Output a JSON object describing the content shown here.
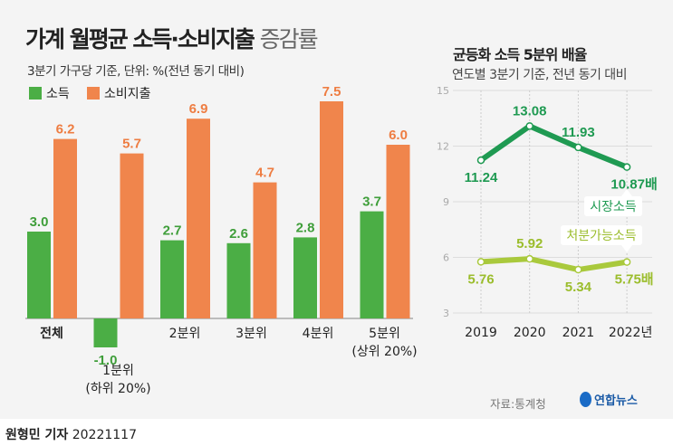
{
  "title_main": "가계 월평균 소득·소비지출",
  "title_light": "증감률",
  "subtitle": "3분기 가구당 기준, 단위: %(전년 동기 대비)",
  "chart_data": [
    {
      "type": "bar",
      "categories": [
        "전체",
        "1분위\n(하위 20%)",
        "2분위",
        "3분위",
        "4분위",
        "5분위\n(상위 20%)"
      ],
      "category_lines": [
        [
          "전체"
        ],
        [
          "1분위",
          "(하위 20%)"
        ],
        [
          "2분위"
        ],
        [
          "3분위"
        ],
        [
          "4분위"
        ],
        [
          "5분위",
          "(상위 20%)"
        ]
      ],
      "series": [
        {
          "name": "소득",
          "color": "#4bae45",
          "label_color": "#3f9e3a",
          "values": [
            3.0,
            -1.0,
            2.7,
            2.6,
            2.8,
            3.7
          ]
        },
        {
          "name": "소비지출",
          "color": "#f0854c",
          "label_color": "#ee7d42",
          "values": [
            6.2,
            5.7,
            6.9,
            4.7,
            7.5,
            6.0
          ]
        }
      ],
      "legend": "top-left",
      "grid": false
    },
    {
      "type": "line",
      "title": "균등화 소득 5분위 배율",
      "subtitle": "연도별 3분기 기준, 전년 동기 대비",
      "x": [
        "2019",
        "2020",
        "2021",
        "2022년"
      ],
      "yticks": [
        15,
        12,
        9,
        6,
        3
      ],
      "ylim": [
        3,
        15
      ],
      "grid": true,
      "series": [
        {
          "name": "시장소득",
          "color": "#1f9a52",
          "values": [
            11.24,
            13.08,
            11.93,
            10.87
          ],
          "labels": [
            "11.24",
            "13.08",
            "11.93",
            "10.87배"
          ]
        },
        {
          "name": "처분가능소득",
          "color": "#a9c93c",
          "values": [
            5.76,
            5.92,
            5.34,
            5.75
          ],
          "labels": [
            "5.76",
            "5.92",
            "5.34",
            "5.75배"
          ]
        }
      ]
    }
  ],
  "source": "자료:통계청",
  "logo": "연합뉴스",
  "byline_name": "원형민 기자",
  "byline_date": "20221117"
}
